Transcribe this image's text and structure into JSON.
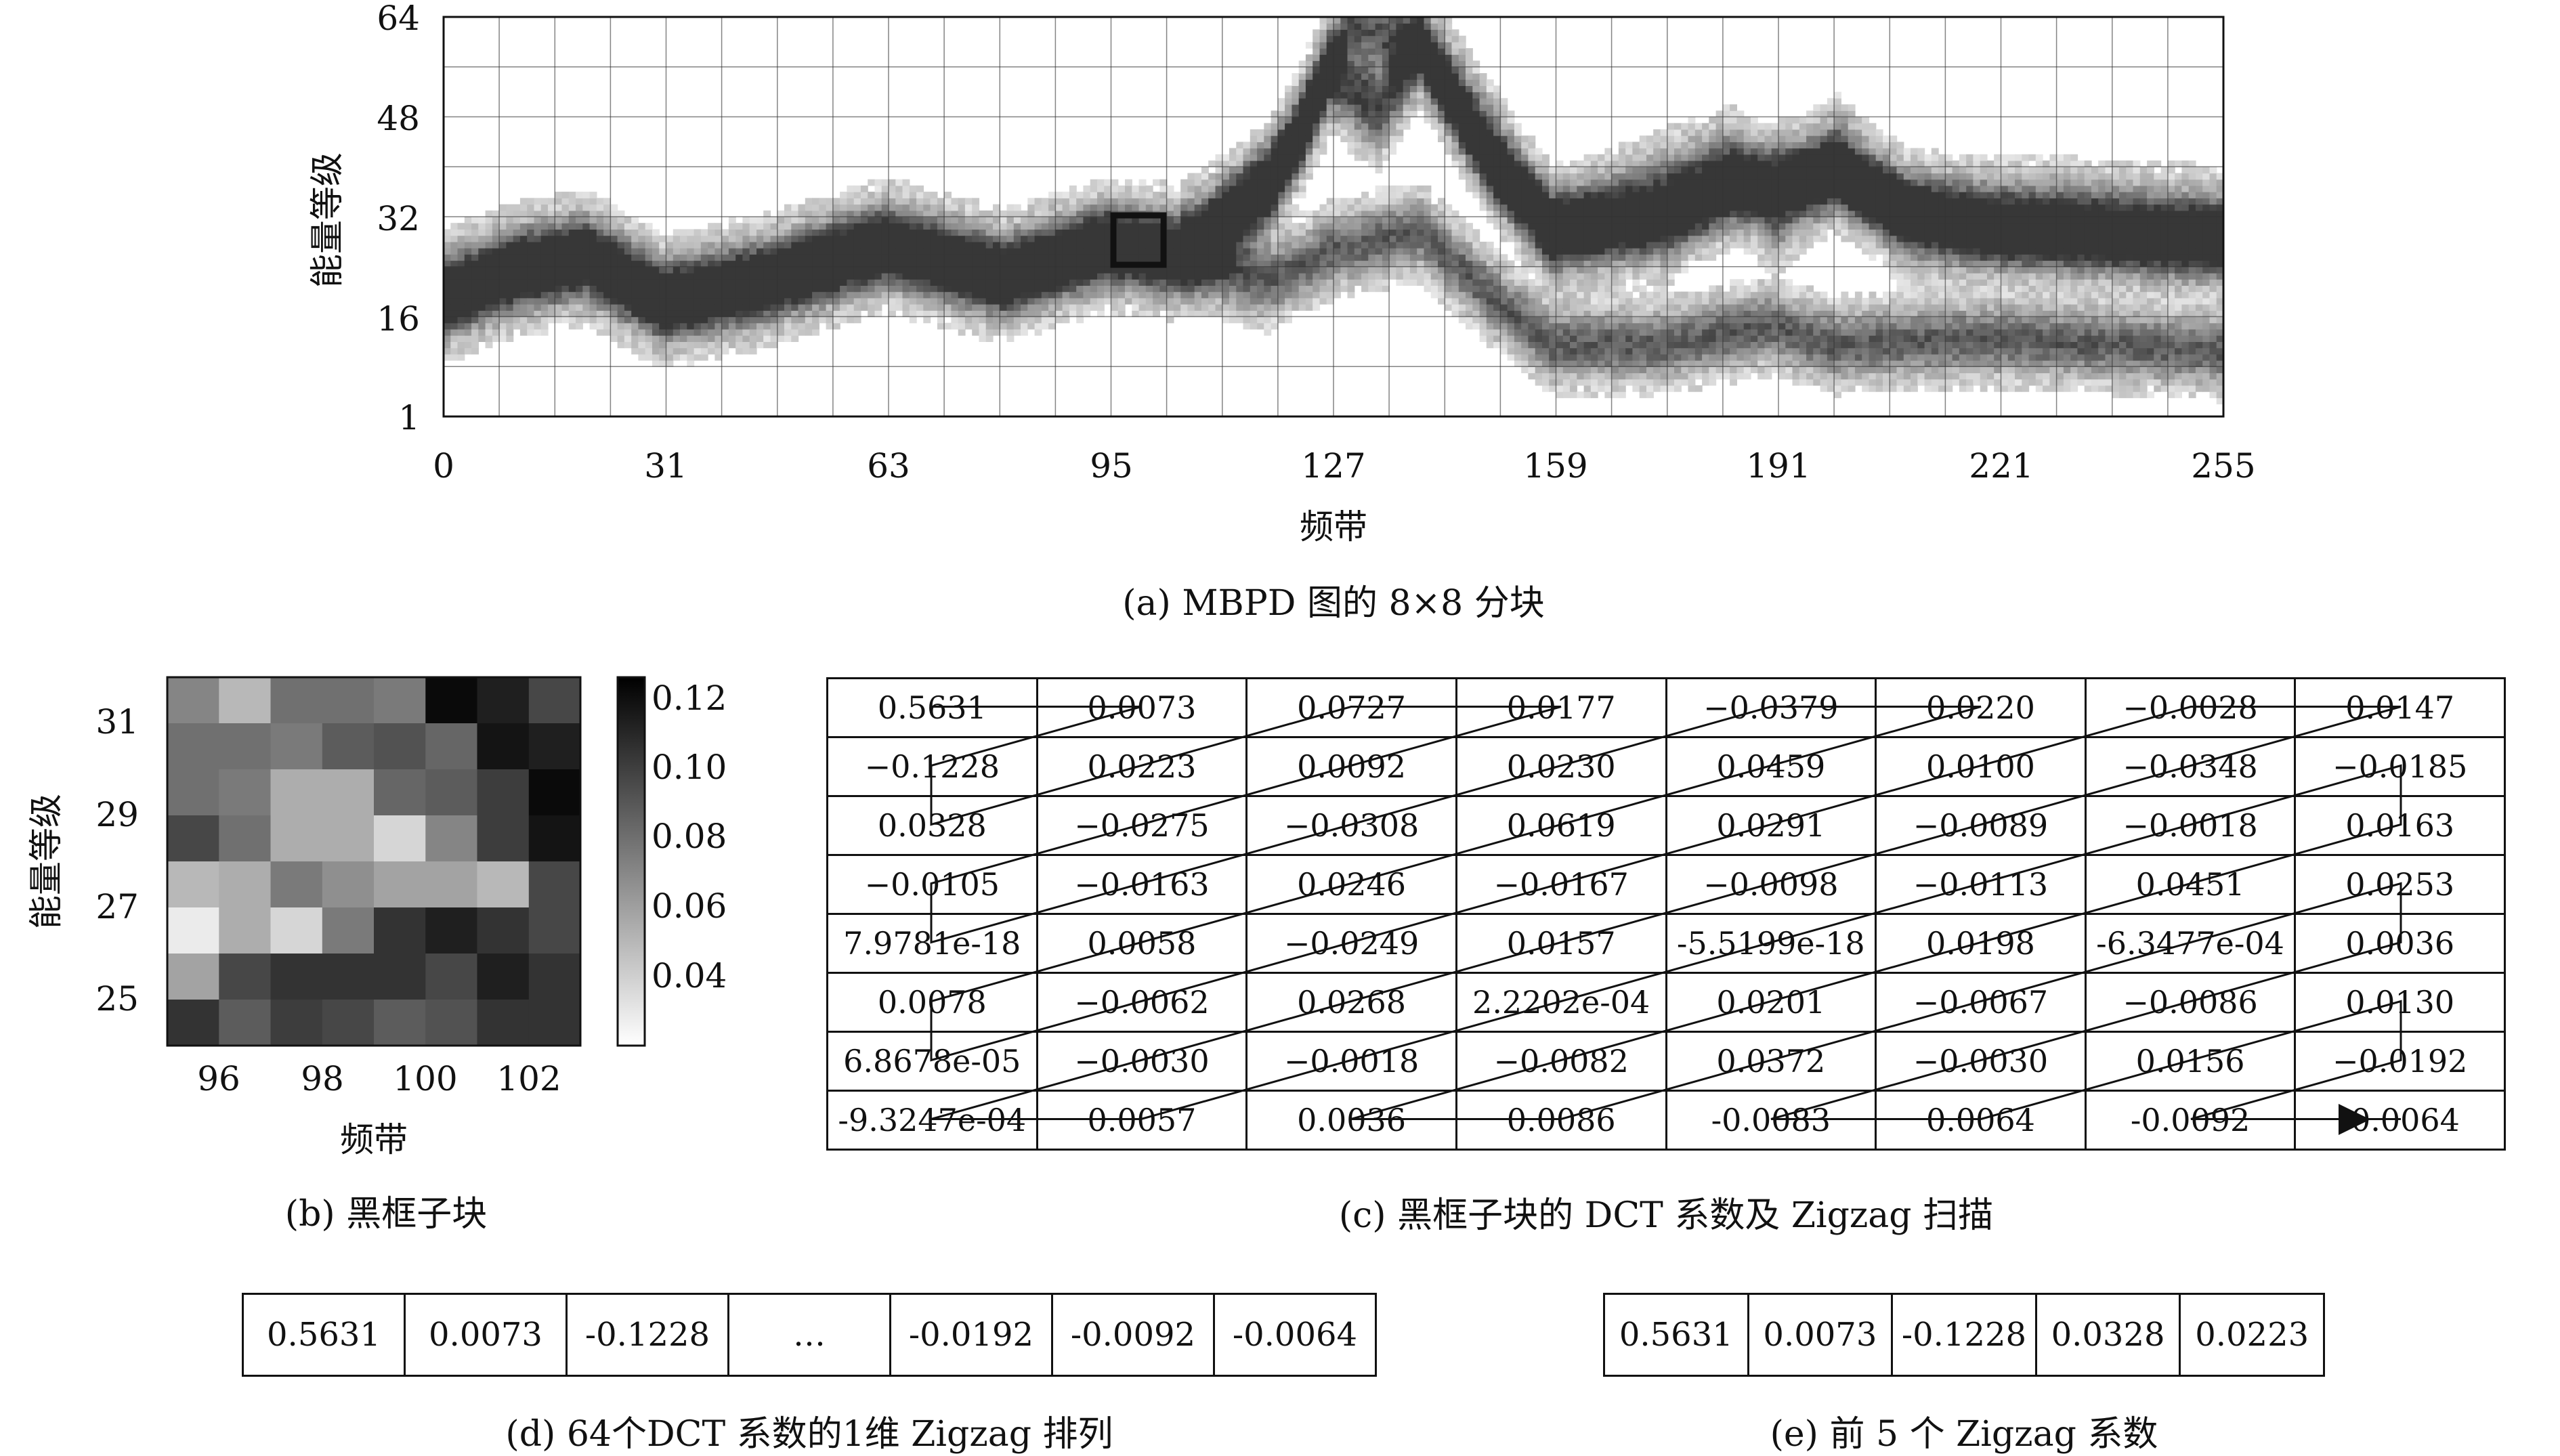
{
  "figure_a": {
    "ylabel": "能量等级",
    "xlabel": "频带",
    "yticks": [
      "64",
      "48",
      "32",
      "16",
      "1"
    ],
    "xticks": [
      "0",
      "31",
      "63",
      "95",
      "127",
      "159",
      "191",
      "221",
      "255"
    ],
    "caption": "(a) MBPD 图的 8×8 分块"
  },
  "figure_b": {
    "ylabel": "能量等级",
    "xlabel": "频带",
    "yticks": [
      "31",
      "29",
      "27",
      "25"
    ],
    "xticks": [
      "96",
      "98",
      "100",
      "102"
    ],
    "colorbar_ticks": [
      "0.12",
      "0.10",
      "0.08",
      "0.06",
      "0.04"
    ],
    "caption": "(b) 黑框子块"
  },
  "figure_c": {
    "rows": [
      [
        "0.5631",
        "0.0073",
        "0.0727",
        "0.0177",
        "−0.0379",
        "0.0220",
        "−0.0028",
        "0.0147"
      ],
      [
        "−0.1228",
        "0.0223",
        "0.0092",
        "0.0230",
        "0.0459",
        "0.0100",
        "−0.0348",
        "−0.0185"
      ],
      [
        "0.0328",
        "−0.0275",
        "−0.0308",
        "0.0619",
        "0.0291",
        "−0.0089",
        "−0.0018",
        "0.0163"
      ],
      [
        "−0.0105",
        "−0.0163",
        "0.0246",
        "−0.0167",
        "−0.0098",
        "−0.0113",
        "0.0451",
        "0.0253"
      ],
      [
        "7.9781e-18",
        "0.0058",
        "−0.0249",
        "0.0157",
        "-5.5199e-18",
        "0.0198",
        "-6.3477e-04",
        "0.0036"
      ],
      [
        "0.0078",
        "−0.0062",
        "0.0268",
        "2.2202e-04",
        "0.0201",
        "−0.0067",
        "−0.0086",
        "0.0130"
      ],
      [
        "6.8678e-05",
        "−0.0030",
        "−0.0018",
        "−0.0082",
        "0.0372",
        "−0.0030",
        "0.0156",
        "−0.0192"
      ],
      [
        "-9.3247e-04",
        "0.0057",
        "0.0036",
        "0.0086",
        "-0.0083",
        "0.0064",
        "-0.0092",
        "-0.0064"
      ]
    ],
    "caption": "(c) 黑框子块的 DCT 系数及 Zigzag 扫描"
  },
  "figure_d": {
    "cells": [
      "0.5631",
      "0.0073",
      "-0.1228",
      "…",
      "-0.0192",
      "-0.0092",
      "-0.0064"
    ],
    "caption": "(d) 64个DCT 系数的1维 Zigzag 排列"
  },
  "figure_e": {
    "cells": [
      "0.5631",
      "0.0073",
      "-0.1228",
      "0.0328",
      "0.0223"
    ],
    "caption": "(e) 前 5 个 Zigzag 系数"
  }
}
